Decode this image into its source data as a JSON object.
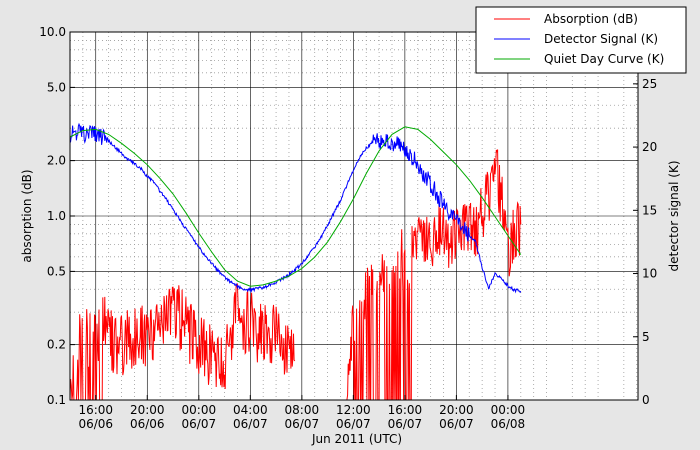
{
  "chart_data": {
    "type": "line",
    "xlabel": "Jun 2011 (UTC)",
    "ylabel_left": "absorption (dB)",
    "ylabel_right": "detector signal (K)",
    "x_unit": "hours since 2011-06-06 00:00 UTC",
    "xlim": [
      14.0,
      58.1
    ],
    "ylim_left": [
      0.1,
      10.0
    ],
    "yscale_left": "log",
    "ylim_right": [
      0,
      29.1
    ],
    "yscale_right": "linear",
    "grid": true,
    "legend_position": "top-right",
    "x_ticks": [
      {
        "x": 16,
        "time": "16:00",
        "date": "06/06"
      },
      {
        "x": 20,
        "time": "20:00",
        "date": "06/06"
      },
      {
        "x": 24,
        "time": "00:00",
        "date": "06/07"
      },
      {
        "x": 28,
        "time": "04:00",
        "date": "06/07"
      },
      {
        "x": 32,
        "time": "08:00",
        "date": "06/07"
      },
      {
        "x": 36,
        "time": "12:00",
        "date": "06/07"
      },
      {
        "x": 40,
        "time": "16:00",
        "date": "06/07"
      },
      {
        "x": 44,
        "time": "20:00",
        "date": "06/07"
      },
      {
        "x": 48,
        "time": "00:00",
        "date": "06/08"
      }
    ],
    "y_ticks_left": [
      {
        "v": 0.1,
        "label": "0.1"
      },
      {
        "v": 0.2,
        "label": "0.2"
      },
      {
        "v": 0.5,
        "label": "0.5"
      },
      {
        "v": 1.0,
        "label": "1.0"
      },
      {
        "v": 2.0,
        "label": "2.0"
      },
      {
        "v": 5.0,
        "label": "5.0"
      },
      {
        "v": 10.0,
        "label": "10.0"
      }
    ],
    "y_ticks_right": [
      {
        "v": 0,
        "label": "0"
      },
      {
        "v": 5,
        "label": "5"
      },
      {
        "v": 10,
        "label": "10"
      },
      {
        "v": 15,
        "label": "15"
      },
      {
        "v": 20,
        "label": "20"
      },
      {
        "v": 25,
        "label": "25"
      }
    ],
    "series": [
      {
        "name": "Absorption (dB)",
        "axis": "left",
        "color": "#ff0000",
        "x": [
          14.0,
          14.5,
          15.0,
          15.5,
          16.0,
          16.5,
          17.0,
          17.5,
          18.0,
          18.5,
          19.0,
          19.5,
          20.0,
          20.5,
          21.0,
          21.5,
          22.0,
          22.5,
          23.0,
          23.5,
          24.0,
          24.5,
          25.0,
          25.5,
          26.0,
          26.5,
          27.0,
          27.5,
          28.0,
          28.5,
          29.0,
          29.5,
          30.0,
          30.5,
          31.0,
          31.5,
          32.0,
          32.5,
          33.0,
          33.5,
          34.0,
          34.5,
          35.0,
          35.5,
          36.0,
          36.5,
          37.0,
          37.5,
          38.0,
          38.5,
          39.0,
          39.5,
          40.0,
          40.5,
          41.0,
          41.5,
          42.0,
          42.5,
          43.0,
          43.5,
          44.0,
          44.5,
          45.0,
          45.5,
          46.0,
          46.5,
          47.0,
          47.5,
          48.0,
          48.5,
          49.0
        ],
        "y": [
          0.1,
          0.17,
          0.25,
          0.21,
          0.2,
          0.28,
          0.22,
          0.19,
          0.2,
          0.22,
          0.21,
          0.23,
          0.22,
          0.24,
          0.25,
          0.27,
          0.3,
          0.28,
          0.25,
          0.22,
          0.2,
          0.19,
          0.17,
          0.16,
          0.15,
          0.22,
          0.3,
          0.27,
          0.26,
          0.24,
          0.22,
          0.22,
          0.23,
          0.21,
          0.18,
          0.15,
          null,
          null,
          null,
          null,
          null,
          null,
          null,
          0.1,
          0.3,
          0.35,
          0.4,
          0.45,
          0.4,
          0.5,
          0.42,
          0.6,
          0.55,
          0.65,
          0.7,
          0.72,
          0.65,
          0.8,
          0.78,
          0.75,
          0.8,
          0.85,
          0.82,
          0.8,
          1.1,
          1.2,
          2.0,
          1.2,
          0.65,
          0.75,
          0.9
        ],
        "y_extra": {
          "dropouts_to_min_between_hours": [
            [
              14.0,
              16.5
            ],
            [
              36.0,
              40.5
            ]
          ]
        }
      },
      {
        "name": "Detector Signal (K)",
        "axis": "right",
        "color": "#0000ff",
        "x": [
          14.0,
          14.5,
          15.0,
          15.5,
          16.0,
          16.5,
          17.0,
          17.5,
          18.0,
          18.5,
          19.0,
          19.5,
          20.0,
          20.5,
          21.0,
          21.5,
          22.0,
          22.5,
          23.0,
          23.5,
          24.0,
          24.5,
          25.0,
          25.5,
          26.0,
          26.5,
          27.0,
          27.5,
          28.0,
          28.5,
          29.0,
          29.5,
          30.0,
          30.5,
          31.0,
          31.5,
          32.0,
          32.5,
          33.0,
          33.5,
          34.0,
          34.5,
          35.0,
          35.5,
          36.0,
          36.5,
          37.0,
          37.5,
          38.0,
          38.5,
          39.0,
          39.5,
          40.0,
          40.5,
          41.0,
          41.5,
          42.0,
          42.5,
          43.0,
          43.5,
          44.0,
          44.5,
          45.0,
          45.5,
          46.0,
          46.5,
          47.0,
          47.5,
          48.0,
          48.5,
          49.0
        ],
        "y": [
          21.0,
          21.2,
          21.0,
          21.0,
          21.0,
          20.8,
          20.5,
          20.0,
          19.5,
          19.0,
          18.7,
          18.3,
          17.7,
          17.2,
          16.5,
          15.8,
          15.1,
          14.3,
          13.5,
          12.8,
          12.1,
          11.4,
          10.8,
          10.2,
          9.7,
          9.3,
          9.0,
          8.8,
          8.7,
          8.8,
          8.9,
          9.1,
          9.3,
          9.6,
          9.9,
          10.3,
          10.8,
          11.4,
          12.1,
          12.9,
          13.8,
          14.8,
          15.8,
          17.0,
          18.1,
          19.2,
          19.9,
          20.4,
          20.5,
          20.5,
          20.4,
          20.1,
          19.8,
          19.3,
          18.6,
          17.8,
          17.1,
          16.3,
          15.4,
          14.8,
          14.2,
          13.6,
          13.0,
          12.5,
          10.5,
          8.8,
          10.0,
          9.6,
          9.0,
          8.7,
          8.6
        ],
        "y_extra": {
          "spike_at_hour": 31.6,
          "spike_value": 10.5
        }
      },
      {
        "name": "Quiet Day Curve (K)",
        "axis": "right",
        "color": "#00aa00",
        "x": [
          14.0,
          15.0,
          16.0,
          17.0,
          18.0,
          19.0,
          20.0,
          21.0,
          22.0,
          23.0,
          24.0,
          25.0,
          26.0,
          27.0,
          28.0,
          29.0,
          30.0,
          31.0,
          32.0,
          33.0,
          34.0,
          35.0,
          36.0,
          37.0,
          38.0,
          39.0,
          40.0,
          41.0,
          42.0,
          43.0,
          44.0,
          45.0,
          46.0,
          47.0,
          48.0,
          49.0
        ],
        "y": [
          20.8,
          21.3,
          21.4,
          21.0,
          20.3,
          19.5,
          18.6,
          17.5,
          16.3,
          14.8,
          13.2,
          11.7,
          10.3,
          9.4,
          9.0,
          9.1,
          9.4,
          9.8,
          10.4,
          11.3,
          12.5,
          14.1,
          15.9,
          17.9,
          19.7,
          21.0,
          21.6,
          21.4,
          20.6,
          19.6,
          18.6,
          17.4,
          16.0,
          14.5,
          13.0,
          11.5
        ]
      }
    ]
  }
}
